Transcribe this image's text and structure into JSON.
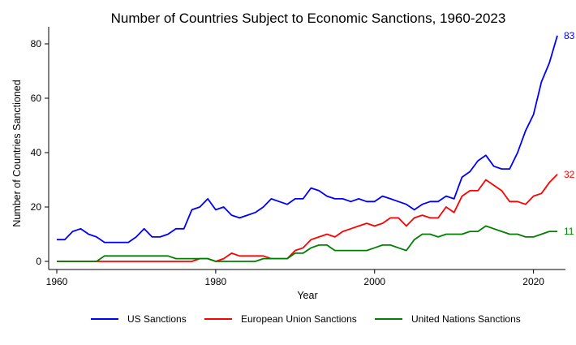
{
  "chart_data": {
    "type": "line",
    "title": "Number of Countries Subject to Economic Sanctions, 1960-2023",
    "xlabel": "Year",
    "ylabel": "Number of Countries Sanctioned",
    "xlim": [
      1960,
      2023
    ],
    "ylim": [
      0,
      85
    ],
    "xticks": [
      1960,
      1980,
      2000,
      2020
    ],
    "yticks": [
      0,
      20,
      40,
      60,
      80
    ],
    "grid": false,
    "legend_position": "bottom",
    "x": [
      1960,
      1961,
      1962,
      1963,
      1964,
      1965,
      1966,
      1967,
      1968,
      1969,
      1970,
      1971,
      1972,
      1973,
      1974,
      1975,
      1976,
      1977,
      1978,
      1979,
      1980,
      1981,
      1982,
      1983,
      1984,
      1985,
      1986,
      1987,
      1988,
      1989,
      1990,
      1991,
      1992,
      1993,
      1994,
      1995,
      1996,
      1997,
      1998,
      1999,
      2000,
      2001,
      2002,
      2003,
      2004,
      2005,
      2006,
      2007,
      2008,
      2009,
      2010,
      2011,
      2012,
      2013,
      2014,
      2015,
      2016,
      2017,
      2018,
      2019,
      2020,
      2021,
      2022,
      2023
    ],
    "series": [
      {
        "name": "US Sanctions",
        "color": "#0000ff",
        "end_label": "83",
        "values": [
          8,
          8,
          11,
          12,
          10,
          9,
          7,
          7,
          7,
          7,
          9,
          12,
          9,
          9,
          10,
          12,
          12,
          19,
          20,
          23,
          19,
          20,
          17,
          16,
          17,
          18,
          20,
          23,
          22,
          21,
          23,
          23,
          27,
          26,
          24,
          23,
          23,
          22,
          23,
          22,
          22,
          24,
          23,
          22,
          21,
          19,
          21,
          22,
          22,
          24,
          23,
          31,
          33,
          37,
          39,
          35,
          34,
          34,
          40,
          48,
          54,
          66,
          73,
          83
        ]
      },
      {
        "name": "European Union Sanctions",
        "color": "#ff0000",
        "end_label": "32",
        "values": [
          0,
          0,
          0,
          0,
          0,
          0,
          0,
          0,
          0,
          0,
          0,
          0,
          0,
          0,
          0,
          0,
          0,
          0,
          1,
          1,
          0,
          1,
          3,
          2,
          2,
          2,
          2,
          1,
          1,
          1,
          4,
          5,
          8,
          9,
          10,
          9,
          11,
          12,
          13,
          14,
          13,
          14,
          16,
          16,
          13,
          16,
          17,
          16,
          16,
          20,
          18,
          24,
          26,
          26,
          30,
          28,
          26,
          22,
          22,
          21,
          24,
          25,
          29,
          32
        ]
      },
      {
        "name": "United Nations Sanctions",
        "color": "#008000",
        "end_label": "11",
        "values": [
          0,
          0,
          0,
          0,
          0,
          0,
          2,
          2,
          2,
          2,
          2,
          2,
          2,
          2,
          2,
          1,
          1,
          1,
          1,
          1,
          0,
          0,
          0,
          0,
          0,
          0,
          1,
          1,
          1,
          1,
          3,
          3,
          5,
          6,
          6,
          4,
          4,
          4,
          4,
          4,
          5,
          6,
          6,
          5,
          4,
          8,
          10,
          10,
          9,
          10,
          10,
          10,
          11,
          11,
          13,
          12,
          11,
          10,
          10,
          9,
          9,
          10,
          11,
          11
        ]
      }
    ]
  }
}
